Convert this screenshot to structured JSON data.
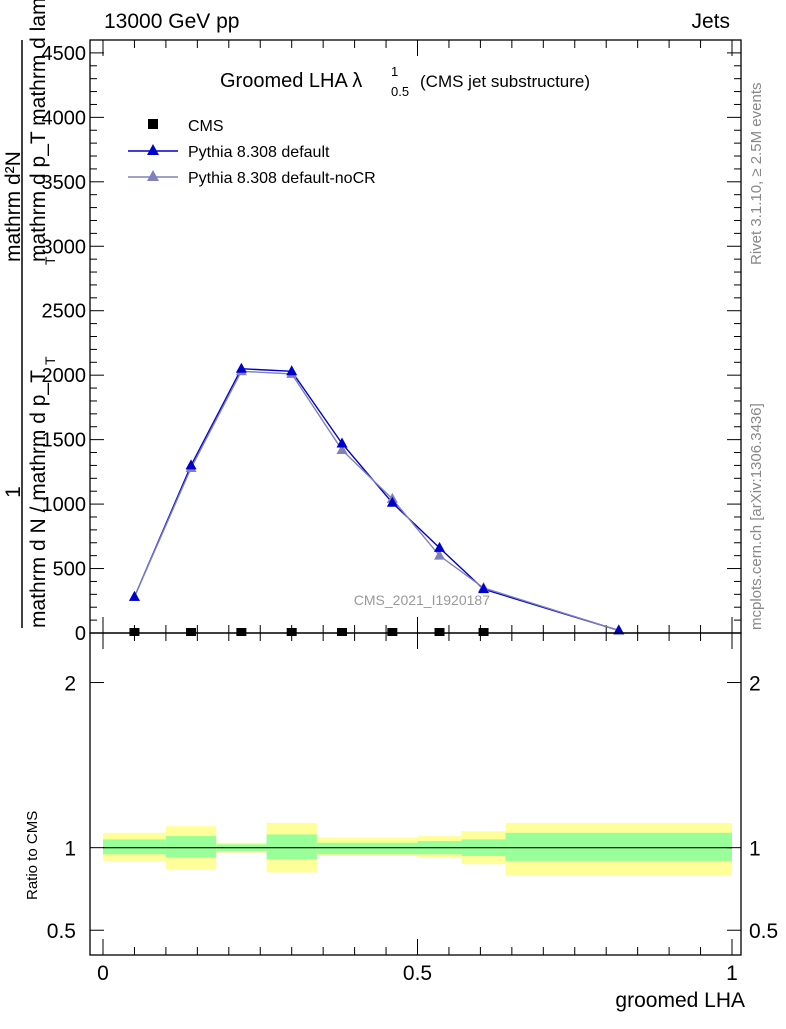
{
  "header": {
    "left": "13000 GeV pp",
    "right": "Jets"
  },
  "side_labels": {
    "rivet": "Rivet 3.1.10, ≥ 2.5M events",
    "mcplots": "mcplots.cern.ch [arXiv:1306.3436]"
  },
  "title": {
    "main": "Groomed LHA λ",
    "sup": "1",
    "sub": "0.5",
    "suffix": "(CMS jet substructure)"
  },
  "watermark": "CMS_2021_I1920187",
  "ylabel": {
    "one": "1",
    "den": "mathrm d N / mathrm d p_T",
    "num1": "mathrm d²N",
    "num2": "mathrm d p_T mathrm d lambda",
    "sub_t": "T",
    "sub_t2": "T"
  },
  "colors": {
    "cms": "#000000",
    "pythia_default": "#0000cc",
    "pythia_nocr": "#8080bb",
    "band_inner": "#99ff99",
    "band_outer": "#ffff99"
  },
  "legend": [
    {
      "label": "CMS",
      "marker": "square"
    },
    {
      "label": "Pythia 8.308 default",
      "marker": "triangle"
    },
    {
      "label": "Pythia 8.308 default-noCR",
      "marker": "triangle"
    }
  ],
  "chart_data": [
    {
      "type": "line",
      "xlabel": "groomed LHA",
      "ylabel": "",
      "xlim": [
        0,
        1
      ],
      "ylim": [
        0,
        4600
      ],
      "y_ticks": [
        0,
        500,
        1000,
        1500,
        2000,
        2500,
        3000,
        3500,
        4000,
        4500
      ],
      "y_tick_labels": [
        "0",
        "500",
        "1000",
        "1500",
        "2000",
        "2500",
        "3000",
        "3500",
        "4000",
        "4500"
      ],
      "series": [
        {
          "name": "CMS",
          "x": [
            0.05,
            0.14,
            0.22,
            0.3,
            0.38,
            0.46,
            0.535,
            0.605
          ],
          "y": [
            0,
            0,
            0,
            0,
            0,
            0,
            0,
            0
          ]
        },
        {
          "name": "Pythia 8.308 default",
          "x": [
            0.05,
            0.14,
            0.22,
            0.3,
            0.38,
            0.46,
            0.535,
            0.605,
            0.82
          ],
          "y": [
            280,
            1300,
            2050,
            2030,
            1470,
            1010,
            660,
            340,
            20
          ]
        },
        {
          "name": "Pythia 8.308 default-noCR",
          "x": [
            0.05,
            0.14,
            0.22,
            0.3,
            0.38,
            0.46,
            0.535,
            0.605,
            0.82
          ],
          "y": [
            280,
            1280,
            2030,
            2010,
            1420,
            1040,
            600,
            350,
            20
          ]
        }
      ]
    },
    {
      "type": "area",
      "xlabel": "groomed LHA",
      "ylabel": "Ratio to CMS",
      "xlim": [
        0,
        1
      ],
      "ylim": [
        0.35,
        2.3
      ],
      "y_ticks": [
        0.5,
        1,
        2
      ],
      "y_tick_labels": [
        "0.5",
        "1",
        "2"
      ],
      "x_ticks": [
        0,
        0.5,
        1
      ],
      "x_tick_labels": [
        "0",
        "0.5",
        "1"
      ],
      "bins": [
        {
          "x0": 0.0,
          "x1": 0.1,
          "inner": [
            0.96,
            1.05
          ],
          "outer": [
            0.92,
            1.09
          ]
        },
        {
          "x0": 0.1,
          "x1": 0.18,
          "inner": [
            0.94,
            1.07
          ],
          "outer": [
            0.87,
            1.13
          ]
        },
        {
          "x0": 0.18,
          "x1": 0.26,
          "inner": [
            0.98,
            1.02
          ],
          "outer": [
            0.97,
            1.03
          ]
        },
        {
          "x0": 0.26,
          "x1": 0.34,
          "inner": [
            0.93,
            1.08
          ],
          "outer": [
            0.85,
            1.15
          ]
        },
        {
          "x0": 0.34,
          "x1": 0.5,
          "inner": [
            0.96,
            1.03
          ],
          "outer": [
            0.95,
            1.06
          ]
        },
        {
          "x0": 0.5,
          "x1": 0.57,
          "inner": [
            0.96,
            1.04
          ],
          "outer": [
            0.94,
            1.07
          ]
        },
        {
          "x0": 0.57,
          "x1": 0.64,
          "inner": [
            0.95,
            1.05
          ],
          "outer": [
            0.9,
            1.1
          ]
        },
        {
          "x0": 0.64,
          "x1": 1.0,
          "inner": [
            0.92,
            1.09
          ],
          "outer": [
            0.83,
            1.15
          ]
        }
      ]
    }
  ]
}
